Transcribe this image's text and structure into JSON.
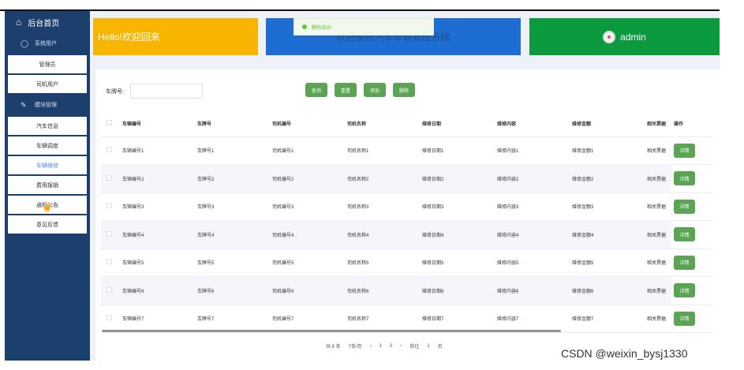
{
  "sidebar": {
    "home_label": "后台首页",
    "groups": [
      {
        "label": "系统用户",
        "items": [
          "管理员",
          "司机用户"
        ]
      },
      {
        "label": "模块管理",
        "items": [
          "汽车信息",
          "车辆调度",
          "车辆维修",
          "费用报销",
          "通知公告",
          "意见反馈"
        ]
      }
    ],
    "active_item": "车辆维修"
  },
  "header": {
    "hello_text": "Hello!欢迎回来",
    "system_title": "欢迎使用汽车车辆管理系统",
    "user_name": "admin",
    "toast": "删除成功!"
  },
  "search": {
    "label": "车牌号:",
    "value": "",
    "buttons": [
      "查询",
      "重置",
      "添加",
      "删除"
    ]
  },
  "table": {
    "columns": [
      "车辆编号",
      "车牌号",
      "司机编号",
      "司机名称",
      "维修日期",
      "维修内容",
      "维修金额",
      "相关票据",
      "操作"
    ],
    "rows": [
      [
        "车辆编号1",
        "车牌号1",
        "司机编号1",
        "司机名称1",
        "维修日期1",
        "维修内容1",
        "维修金额1",
        "相关票据"
      ],
      [
        "车辆编号2",
        "车牌号2",
        "司机编号2",
        "司机名称2",
        "维修日期2",
        "维修内容2",
        "维修金额2",
        "相关票据"
      ],
      [
        "车辆编号3",
        "车牌号3",
        "司机编号3",
        "司机名称3",
        "维修日期3",
        "维修内容3",
        "维修金额3",
        "相关票据"
      ],
      [
        "车辆编号4",
        "车牌号4",
        "司机编号4",
        "司机名称4",
        "维修日期4",
        "维修内容4",
        "维修金额4",
        "相关票据"
      ],
      [
        "车辆编号5",
        "车牌号5",
        "司机编号5",
        "司机名称5",
        "维修日期5",
        "维修内容5",
        "维修金额5",
        "相关票据"
      ],
      [
        "车辆编号6",
        "车牌号6",
        "司机编号6",
        "司机名称6",
        "维修日期6",
        "维修内容6",
        "维修金额6",
        "相关票据"
      ],
      [
        "车辆编号7",
        "车牌号7",
        "司机编号7",
        "司机名称7",
        "维修日期7",
        "维修内容7",
        "维修金额7",
        "相关票据"
      ]
    ],
    "action_label": "详情"
  },
  "pagination": {
    "total": "共 8 条",
    "page_size": "7条/页",
    "pages": [
      "1",
      "2"
    ],
    "current": "1",
    "goto_label": "前往",
    "goto_value": "1",
    "page_suffix": "页"
  },
  "watermark": "CSDN @weixin_bysj1330",
  "colors": {
    "sidebar": "#1c3f6e",
    "hello_card": "#f8b500",
    "title_card": "#1e6dd2",
    "user_card": "#0c9a3f",
    "button": "#5aa454"
  }
}
